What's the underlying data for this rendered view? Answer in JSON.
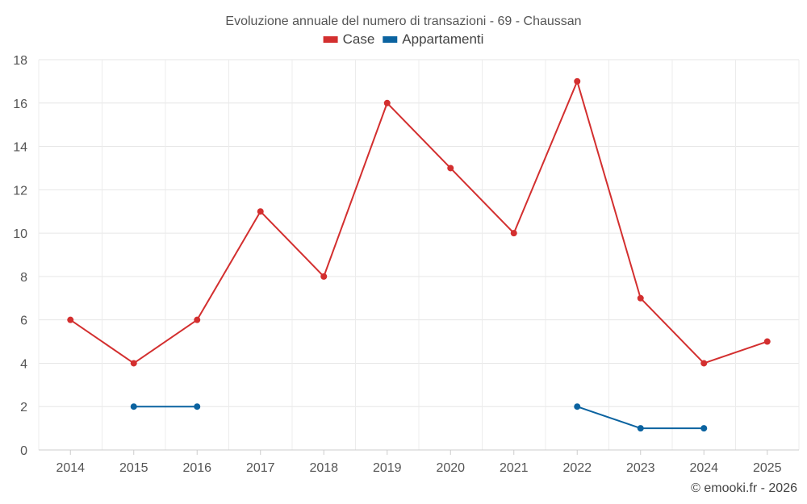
{
  "chart_data": {
    "type": "line",
    "title": "Evoluzione annuale del numero di transazioni - 69 - Chaussan",
    "categories": [
      "2014",
      "2015",
      "2016",
      "2017",
      "2018",
      "2019",
      "2020",
      "2021",
      "2022",
      "2023",
      "2024",
      "2025"
    ],
    "series": [
      {
        "name": "Case",
        "color": "#d32f2f",
        "values": [
          6,
          4,
          6,
          11,
          8,
          16,
          13,
          10,
          17,
          7,
          4,
          5
        ]
      },
      {
        "name": "Appartamenti",
        "color": "#0b63a0",
        "values": [
          null,
          2,
          2,
          null,
          null,
          null,
          null,
          null,
          2,
          1,
          1,
          null
        ]
      }
    ],
    "yticks": [
      0,
      2,
      4,
      6,
      8,
      10,
      12,
      14,
      16,
      18
    ],
    "ylim": [
      0,
      18
    ],
    "grid": true,
    "legend_position": "top-center"
  },
  "credit": "© emooki.fr - 2026"
}
